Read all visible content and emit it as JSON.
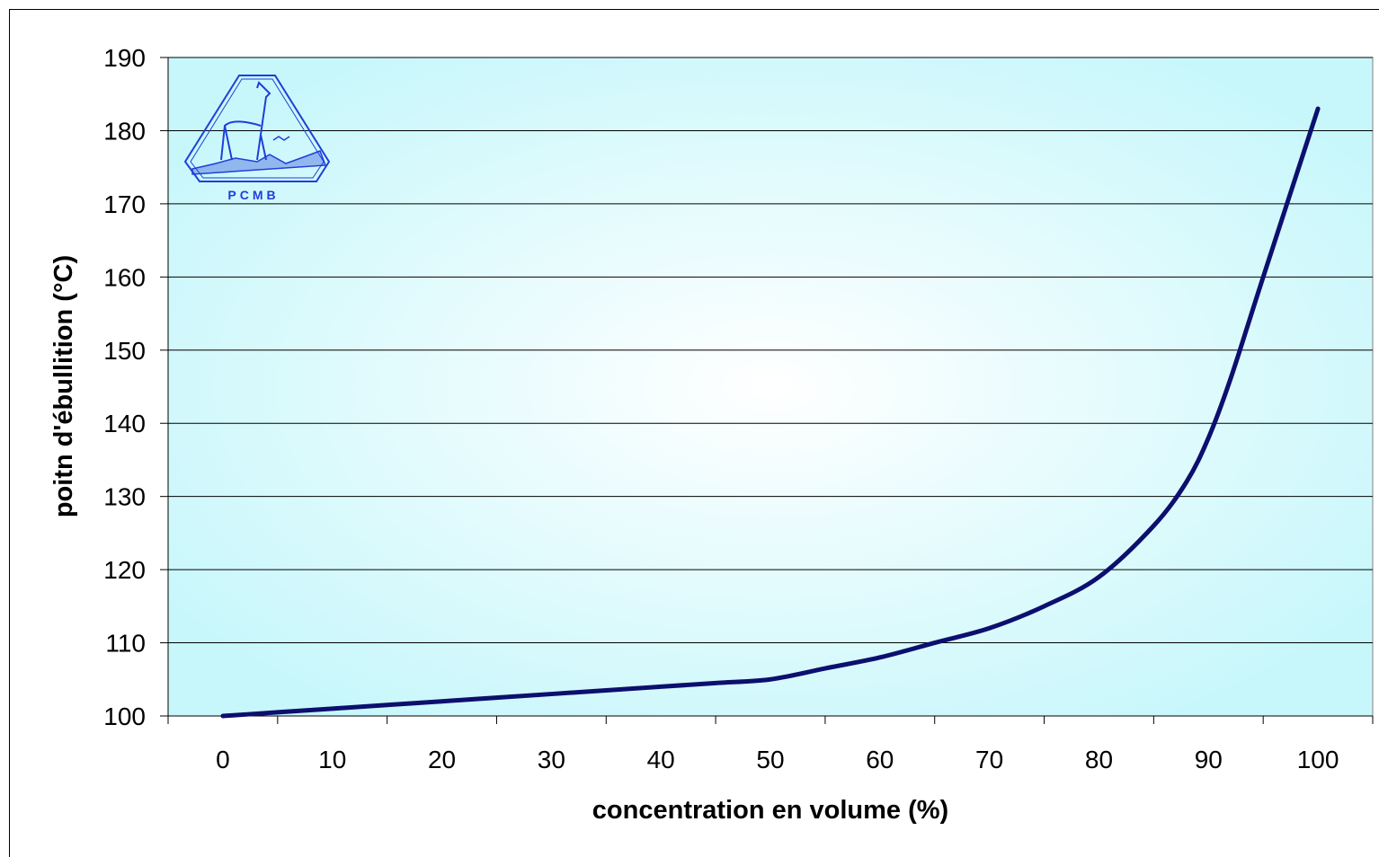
{
  "chart_data": {
    "type": "line",
    "title": "",
    "xlabel": "concentration en volume (%)",
    "ylabel": "poitn d'ébullition (°C)",
    "x": [
      0,
      5,
      10,
      15,
      20,
      25,
      30,
      35,
      40,
      45,
      50,
      55,
      60,
      65,
      70,
      75,
      80,
      85,
      88,
      90,
      92,
      95,
      100
    ],
    "series": [
      {
        "values": [
          100,
          100.5,
          101,
          101.5,
          102,
          102.5,
          103,
          103.5,
          104,
          104.5,
          105,
          106.5,
          108,
          110,
          112,
          115,
          119,
          126,
          132,
          138,
          146,
          160,
          183
        ],
        "color": "#0c0f6e"
      }
    ],
    "xlim": [
      -5,
      105
    ],
    "ylim": [
      100,
      190
    ],
    "xticks": [
      0,
      10,
      20,
      30,
      40,
      50,
      60,
      70,
      80,
      90,
      100
    ],
    "yticks": [
      100,
      110,
      120,
      130,
      140,
      150,
      160,
      170,
      180,
      190
    ],
    "grid": "horizontal",
    "legend": "none",
    "plot_background": "#c8f7fb",
    "plot_background_center": "#ffffff"
  },
  "logo": {
    "text": "PCMB",
    "color": "#1f3fd8"
  }
}
